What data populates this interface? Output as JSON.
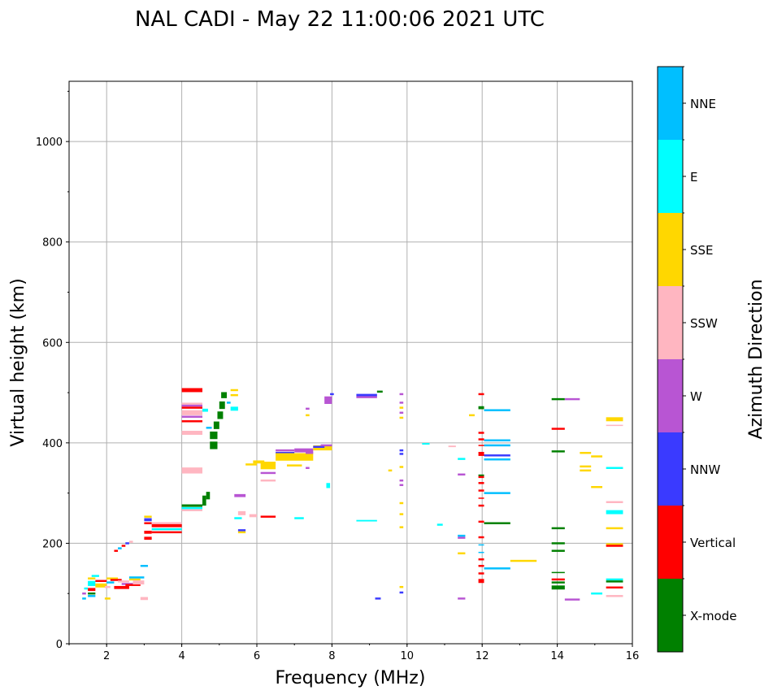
{
  "chart_data": {
    "type": "scatter",
    "title": "NAL CADI - May 22 11:00:06 2021 UTC",
    "xlabel": "Frequency (MHz)",
    "ylabel": "Virtual height (km)",
    "xlim": [
      1,
      16
    ],
    "ylim": [
      0,
      1120
    ],
    "xticks": [
      2,
      4,
      6,
      8,
      10,
      12,
      14,
      16
    ],
    "yticks": [
      0,
      200,
      400,
      600,
      800,
      1000
    ],
    "grid": true,
    "colorbar": {
      "label": "Azimuth Direction",
      "categories": [
        "X-mode",
        "Vertical",
        "NNW",
        "W",
        "SSW",
        "SSE",
        "E",
        "NNE"
      ],
      "colors": [
        "#008000",
        "#ff0000",
        "#3a3aff",
        "#b855d3",
        "#ffb6c1",
        "#ffd700",
        "#00ffff",
        "#00bfff"
      ]
    },
    "segments_format": "[freq_start_MHz, freq_end_MHz, height_km, category_index, thickness_km]",
    "segments": [
      [
        1.35,
        1.45,
        90,
        7,
        4
      ],
      [
        1.35,
        1.45,
        100,
        3,
        4
      ],
      [
        1.4,
        1.5,
        110,
        6,
        4
      ],
      [
        1.5,
        1.7,
        95,
        7,
        4
      ],
      [
        1.5,
        1.7,
        100,
        0,
        4
      ],
      [
        1.5,
        1.7,
        108,
        1,
        6
      ],
      [
        1.5,
        1.7,
        120,
        6,
        10
      ],
      [
        1.5,
        1.7,
        130,
        5,
        4
      ],
      [
        1.6,
        1.8,
        135,
        6,
        4
      ],
      [
        1.7,
        2.0,
        125,
        1,
        4
      ],
      [
        1.7,
        2.0,
        116,
        5,
        8
      ],
      [
        1.95,
        2.1,
        90,
        5,
        4
      ],
      [
        1.95,
        2.1,
        113,
        4,
        4
      ],
      [
        2.0,
        2.2,
        122,
        7,
        4
      ],
      [
        2.0,
        2.3,
        130,
        5,
        4
      ],
      [
        2.1,
        2.4,
        127,
        1,
        4
      ],
      [
        2.2,
        2.6,
        112,
        1,
        6
      ],
      [
        2.3,
        2.6,
        124,
        4,
        4
      ],
      [
        2.4,
        2.7,
        119,
        3,
        4
      ],
      [
        2.5,
        2.9,
        117,
        1,
        4
      ],
      [
        2.6,
        2.9,
        128,
        5,
        4
      ],
      [
        2.7,
        3.0,
        122,
        4,
        8
      ],
      [
        2.6,
        3.0,
        132,
        7,
        4
      ],
      [
        2.9,
        3.1,
        90,
        4,
        6
      ],
      [
        2.9,
        3.1,
        155,
        7,
        4
      ],
      [
        2.2,
        2.3,
        185,
        1,
        4
      ],
      [
        2.3,
        2.4,
        190,
        7,
        4
      ],
      [
        2.4,
        2.5,
        195,
        1,
        4
      ],
      [
        2.5,
        2.6,
        200,
        2,
        4
      ],
      [
        2.6,
        2.7,
        203,
        4,
        4
      ],
      [
        3.0,
        3.2,
        253,
        5,
        4
      ],
      [
        3.0,
        3.2,
        247,
        2,
        6
      ],
      [
        3.0,
        3.2,
        240,
        1,
        4
      ],
      [
        3.2,
        4.0,
        240,
        4,
        4
      ],
      [
        3.2,
        4.0,
        235,
        1,
        6
      ],
      [
        3.2,
        4.0,
        228,
        6,
        4
      ],
      [
        3.0,
        3.2,
        222,
        1,
        6
      ],
      [
        3.2,
        4.0,
        222,
        1,
        4
      ],
      [
        3.0,
        3.2,
        210,
        1,
        6
      ],
      [
        4.0,
        4.55,
        505,
        1,
        8
      ],
      [
        4.0,
        4.55,
        478,
        4,
        4
      ],
      [
        4.0,
        4.55,
        474,
        3,
        4
      ],
      [
        4.0,
        4.55,
        470,
        1,
        4
      ],
      [
        4.0,
        4.55,
        460,
        4,
        10
      ],
      [
        4.0,
        4.55,
        452,
        3,
        4
      ],
      [
        4.0,
        4.55,
        443,
        1,
        4
      ],
      [
        4.0,
        4.55,
        420,
        4,
        8
      ],
      [
        4.0,
        4.55,
        345,
        4,
        12
      ],
      [
        4.0,
        4.55,
        275,
        0,
        5
      ],
      [
        4.0,
        4.55,
        270,
        6,
        4
      ],
      [
        4.0,
        4.55,
        266,
        4,
        4
      ],
      [
        4.55,
        4.65,
        285,
        0,
        20
      ],
      [
        4.65,
        4.75,
        295,
        0,
        15
      ],
      [
        4.75,
        4.95,
        395,
        0,
        15
      ],
      [
        4.75,
        4.95,
        415,
        0,
        15
      ],
      [
        4.85,
        5.0,
        435,
        0,
        15
      ],
      [
        4.95,
        5.1,
        455,
        0,
        15
      ],
      [
        5.0,
        5.15,
        475,
        0,
        15
      ],
      [
        5.05,
        5.2,
        495,
        0,
        12
      ],
      [
        4.65,
        4.8,
        430,
        7,
        4
      ],
      [
        5.2,
        5.3,
        480,
        7,
        4
      ],
      [
        4.55,
        4.7,
        465,
        6,
        6
      ],
      [
        5.3,
        5.5,
        468,
        6,
        8
      ],
      [
        5.3,
        5.5,
        505,
        5,
        4
      ],
      [
        5.3,
        5.5,
        495,
        5,
        4
      ],
      [
        5.4,
        5.7,
        295,
        3,
        6
      ],
      [
        5.5,
        5.7,
        260,
        4,
        8
      ],
      [
        5.4,
        5.6,
        250,
        6,
        4
      ],
      [
        5.8,
        6.0,
        255,
        4,
        6
      ],
      [
        6.1,
        6.5,
        253,
        1,
        4
      ],
      [
        5.5,
        5.7,
        222,
        5,
        4
      ],
      [
        5.5,
        5.7,
        226,
        2,
        4
      ],
      [
        5.7,
        6.0,
        357,
        5,
        4
      ],
      [
        5.9,
        6.2,
        362,
        5,
        6
      ],
      [
        6.1,
        6.5,
        355,
        5,
        15
      ],
      [
        6.1,
        6.5,
        340,
        3,
        4
      ],
      [
        6.1,
        6.5,
        325,
        4,
        4
      ],
      [
        6.5,
        7.0,
        385,
        3,
        4
      ],
      [
        6.5,
        7.0,
        380,
        2,
        4
      ],
      [
        6.5,
        7.5,
        372,
        5,
        15
      ],
      [
        7.0,
        7.5,
        385,
        3,
        8
      ],
      [
        7.5,
        8.0,
        390,
        5,
        10
      ],
      [
        7.5,
        7.8,
        392,
        2,
        4
      ],
      [
        7.3,
        7.5,
        380,
        3,
        4
      ],
      [
        7.7,
        8.0,
        395,
        3,
        4
      ],
      [
        7.8,
        8.0,
        485,
        3,
        15
      ],
      [
        7.95,
        8.05,
        497,
        2,
        4
      ],
      [
        7.3,
        7.4,
        468,
        3,
        4
      ],
      [
        7.3,
        7.4,
        455,
        5,
        4
      ],
      [
        6.8,
        7.2,
        355,
        5,
        4
      ],
      [
        7.3,
        7.4,
        350,
        3,
        4
      ],
      [
        7.0,
        7.25,
        250,
        6,
        4
      ],
      [
        7.85,
        7.95,
        315,
        6,
        10
      ],
      [
        8.65,
        9.2,
        495,
        2,
        5
      ],
      [
        8.65,
        9.2,
        491,
        3,
        4
      ],
      [
        9.2,
        9.35,
        502,
        0,
        4
      ],
      [
        8.65,
        9.2,
        245,
        6,
        3
      ],
      [
        9.15,
        9.3,
        90,
        2,
        4
      ],
      [
        9.5,
        9.6,
        345,
        5,
        4
      ],
      [
        9.8,
        9.9,
        497,
        3,
        4
      ],
      [
        9.8,
        9.9,
        480,
        3,
        4
      ],
      [
        9.8,
        9.9,
        470,
        5,
        4
      ],
      [
        9.8,
        9.9,
        460,
        3,
        4
      ],
      [
        9.8,
        9.9,
        450,
        5,
        4
      ],
      [
        9.8,
        9.9,
        385,
        2,
        4
      ],
      [
        9.8,
        9.9,
        378,
        2,
        4
      ],
      [
        9.8,
        9.9,
        352,
        5,
        4
      ],
      [
        9.8,
        9.9,
        325,
        3,
        4
      ],
      [
        9.8,
        9.9,
        316,
        3,
        4
      ],
      [
        9.8,
        9.9,
        280,
        5,
        4
      ],
      [
        9.8,
        9.9,
        258,
        5,
        4
      ],
      [
        9.8,
        9.9,
        232,
        5,
        4
      ],
      [
        9.8,
        9.9,
        113,
        5,
        4
      ],
      [
        9.8,
        9.9,
        102,
        2,
        4
      ],
      [
        10.4,
        10.6,
        398,
        6,
        3
      ],
      [
        10.8,
        10.95,
        237,
        6,
        4
      ],
      [
        11.1,
        11.3,
        393,
        4,
        3
      ],
      [
        11.35,
        11.55,
        368,
        6,
        4
      ],
      [
        11.35,
        11.55,
        337,
        3,
        4
      ],
      [
        11.35,
        11.55,
        215,
        7,
        4
      ],
      [
        11.35,
        11.55,
        211,
        3,
        4
      ],
      [
        11.35,
        11.55,
        180,
        5,
        4
      ],
      [
        11.35,
        11.55,
        90,
        3,
        4
      ],
      [
        11.65,
        11.8,
        455,
        5,
        4
      ],
      [
        11.9,
        12.05,
        497,
        1,
        4
      ],
      [
        11.9,
        12.05,
        470,
        0,
        6
      ],
      [
        11.9,
        12.05,
        420,
        1,
        4
      ],
      [
        11.9,
        12.05,
        407,
        1,
        4
      ],
      [
        11.9,
        12.05,
        395,
        1,
        2
      ],
      [
        11.9,
        12.05,
        378,
        1,
        8
      ],
      [
        11.9,
        12.05,
        335,
        0,
        4
      ],
      [
        11.9,
        12.05,
        332,
        1,
        4
      ],
      [
        11.9,
        12.05,
        320,
        1,
        4
      ],
      [
        11.9,
        12.05,
        305,
        1,
        4
      ],
      [
        11.9,
        12.05,
        290,
        1,
        2
      ],
      [
        11.9,
        12.05,
        275,
        1,
        4
      ],
      [
        11.9,
        12.05,
        243,
        1,
        4
      ],
      [
        11.9,
        12.05,
        212,
        1,
        4
      ],
      [
        11.9,
        12.05,
        197,
        7,
        2
      ],
      [
        11.9,
        12.05,
        182,
        7,
        2
      ],
      [
        11.9,
        12.05,
        168,
        1,
        4
      ],
      [
        11.9,
        12.05,
        155,
        1,
        4
      ],
      [
        11.9,
        12.05,
        140,
        1,
        4
      ],
      [
        11.9,
        12.05,
        125,
        1,
        8
      ],
      [
        12.05,
        12.75,
        465,
        7,
        4
      ],
      [
        12.05,
        12.75,
        405,
        7,
        4
      ],
      [
        12.05,
        12.75,
        395,
        7,
        4
      ],
      [
        12.05,
        12.75,
        375,
        2,
        4
      ],
      [
        12.05,
        12.75,
        367,
        7,
        4
      ],
      [
        12.05,
        12.75,
        300,
        7,
        4
      ],
      [
        12.05,
        12.75,
        240,
        0,
        4
      ],
      [
        12.05,
        12.75,
        150,
        7,
        4
      ],
      [
        12.75,
        13.45,
        165,
        5,
        4
      ],
      [
        13.85,
        14.2,
        487,
        0,
        4
      ],
      [
        14.2,
        14.6,
        487,
        3,
        4
      ],
      [
        13.85,
        14.2,
        428,
        1,
        4
      ],
      [
        13.85,
        14.2,
        383,
        0,
        4
      ],
      [
        13.85,
        14.2,
        230,
        0,
        4
      ],
      [
        13.85,
        14.2,
        200,
        0,
        4
      ],
      [
        13.85,
        14.2,
        185,
        0,
        4
      ],
      [
        13.85,
        14.2,
        142,
        0,
        2
      ],
      [
        13.85,
        14.2,
        128,
        1,
        4
      ],
      [
        13.85,
        14.2,
        122,
        0,
        4
      ],
      [
        13.85,
        14.2,
        112,
        0,
        8
      ],
      [
        14.2,
        14.6,
        88,
        3,
        4
      ],
      [
        14.6,
        14.9,
        380,
        5,
        4
      ],
      [
        14.9,
        15.2,
        373,
        5,
        4
      ],
      [
        14.6,
        14.9,
        353,
        5,
        4
      ],
      [
        14.6,
        14.9,
        345,
        5,
        4
      ],
      [
        14.9,
        15.2,
        312,
        5,
        4
      ],
      [
        14.9,
        15.2,
        100,
        6,
        4
      ],
      [
        15.3,
        15.75,
        447,
        5,
        8
      ],
      [
        15.3,
        15.75,
        435,
        4,
        2
      ],
      [
        15.3,
        15.75,
        350,
        6,
        4
      ],
      [
        15.3,
        15.75,
        282,
        4,
        4
      ],
      [
        15.3,
        15.75,
        262,
        6,
        8
      ],
      [
        15.3,
        15.75,
        230,
        5,
        4
      ],
      [
        15.3,
        15.75,
        198,
        5,
        4
      ],
      [
        15.3,
        15.75,
        195,
        1,
        4
      ],
      [
        15.3,
        15.75,
        128,
        6,
        4
      ],
      [
        15.3,
        15.75,
        124,
        0,
        4
      ],
      [
        15.3,
        15.75,
        112,
        1,
        4
      ],
      [
        15.3,
        15.75,
        95,
        4,
        4
      ]
    ]
  }
}
